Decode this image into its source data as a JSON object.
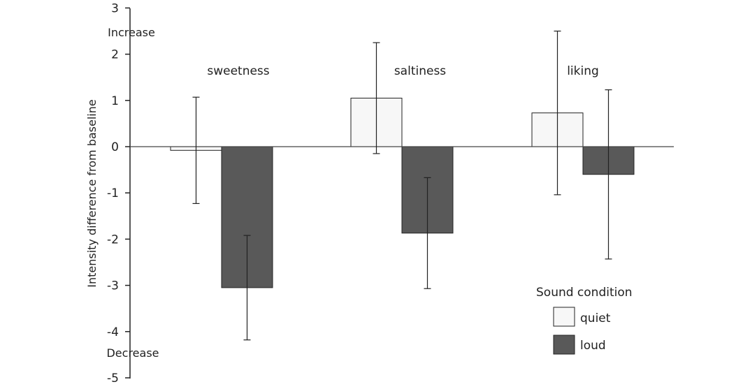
{
  "chart_data": {
    "type": "bar",
    "categories": [
      "sweetness",
      "saltiness",
      "liking"
    ],
    "series": [
      {
        "name": "quiet",
        "values": [
          -0.08,
          1.05,
          0.73
        ],
        "error": [
          1.15,
          1.2,
          1.77
        ],
        "color": "#f7f7f7"
      },
      {
        "name": "loud",
        "values": [
          -3.05,
          -1.87,
          -0.6
        ],
        "error": [
          1.13,
          1.2,
          1.83
        ],
        "color": "#595959"
      }
    ],
    "ylabel": "Intensity difference from baseline",
    "ylim": [
      -5,
      3
    ],
    "yticks": [
      "3",
      "2",
      "1",
      "0",
      "-1",
      "-2",
      "-3",
      "-4",
      "-5"
    ],
    "axis_notes": {
      "top": "Increase",
      "bottom": "Decrease"
    },
    "legend": {
      "title": "Sound condition",
      "placement": "bottom-right"
    },
    "grid": false
  }
}
